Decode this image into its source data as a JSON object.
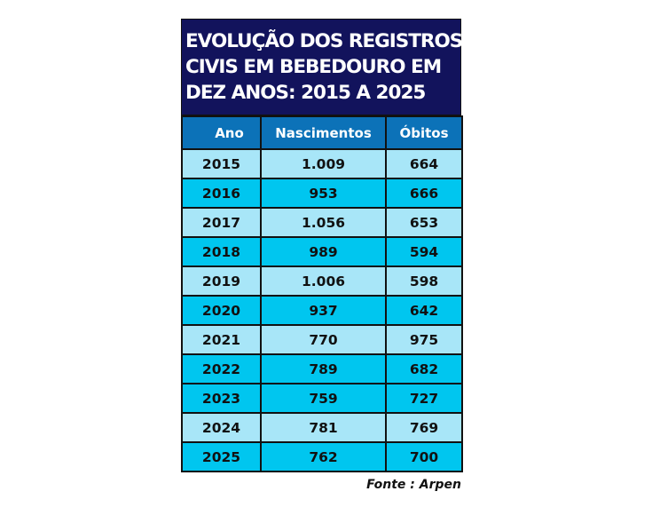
{
  "chart_data": {
    "type": "table",
    "title_lines": [
      "EVOLUÇÃO DOS REGISTROS",
      "CIVIS EM BEBEDOURO EM",
      "DEZ ANOS: 2015 A 2025"
    ],
    "columns": [
      "Ano",
      "Nascimentos",
      "Óbitos"
    ],
    "rows": [
      {
        "ano": "2015",
        "nascimentos": "1.009",
        "obitos": "664",
        "shade": "light"
      },
      {
        "ano": "2016",
        "nascimentos": "953",
        "obitos": "666",
        "shade": "dark"
      },
      {
        "ano": "2017",
        "nascimentos": "1.056",
        "obitos": "653",
        "shade": "light"
      },
      {
        "ano": "2018",
        "nascimentos": "989",
        "obitos": "594",
        "shade": "dark"
      },
      {
        "ano": "2019",
        "nascimentos": "1.006",
        "obitos": "598",
        "shade": "light"
      },
      {
        "ano": "2020",
        "nascimentos": "937",
        "obitos": "642",
        "shade": "dark"
      },
      {
        "ano": "2021",
        "nascimentos": "770",
        "obitos": "975",
        "shade": "light"
      },
      {
        "ano": "2022",
        "nascimentos": "789",
        "obitos": "682",
        "shade": "dark"
      },
      {
        "ano": "2023",
        "nascimentos": "759",
        "obitos": "727",
        "shade": "dark"
      },
      {
        "ano": "2024",
        "nascimentos": "781",
        "obitos": "769",
        "shade": "light"
      },
      {
        "ano": "2025",
        "nascimentos": "762",
        "obitos": "700",
        "shade": "dark"
      }
    ],
    "source": "Fonte : Arpen",
    "colors": {
      "title_bg": "#12135c",
      "header_bg": "#0c72b8",
      "light_row": "#a8e6f8",
      "dark_row": "#00c6ef"
    }
  }
}
